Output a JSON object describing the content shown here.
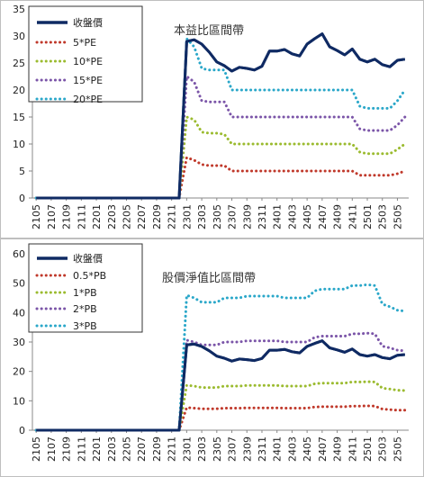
{
  "chart_data": [
    {
      "type": "line",
      "title": "本益比區間帶",
      "ylim": [
        0,
        35
      ],
      "yticks": [
        0,
        5,
        10,
        15,
        20,
        25,
        30,
        35
      ],
      "grid": "none",
      "legend_position": "top-left",
      "x": [
        "2105",
        "2106",
        "2107",
        "2108",
        "2109",
        "2110",
        "2111",
        "2112",
        "2201",
        "2202",
        "2203",
        "2204",
        "2205",
        "2206",
        "2207",
        "2208",
        "2209",
        "2210",
        "2211",
        "2212",
        "2301",
        "2302",
        "2303",
        "2304",
        "2305",
        "2306",
        "2307",
        "2308",
        "2309",
        "2310",
        "2311",
        "2312",
        "2401",
        "2402",
        "2403",
        "2404",
        "2405",
        "2406",
        "2407",
        "2408",
        "2409",
        "2410",
        "2411",
        "2412",
        "2501",
        "2502",
        "2503",
        "2504",
        "2505",
        "2506"
      ],
      "xtick_labels": [
        "2105",
        "2107",
        "2109",
        "2111",
        "2201",
        "2203",
        "2205",
        "2207",
        "2209",
        "2211",
        "2301",
        "2303",
        "2305",
        "2307",
        "2309",
        "2311",
        "2401",
        "2403",
        "2405",
        "2407",
        "2409",
        "2411",
        "2501",
        "2503",
        "2505"
      ],
      "series": [
        {
          "name": "收盤價",
          "color": "#0f2a63",
          "style": "solid",
          "values": [
            0,
            0,
            0,
            0,
            0,
            0,
            0,
            0,
            0,
            0,
            0,
            0,
            0,
            0,
            0,
            0,
            0,
            0,
            0,
            0,
            29,
            29.3,
            28.5,
            27,
            25.2,
            24.5,
            23.5,
            24.2,
            24,
            23.7,
            24.4,
            27.2,
            27.2,
            27.5,
            26.7,
            26.3,
            28.5,
            29.5,
            30.4,
            28,
            27.3,
            26.5,
            27.6,
            25.7,
            25.2,
            25.7,
            24.7,
            24.3,
            25.5,
            25.7
          ]
        },
        {
          "name": "5*PE",
          "color": "#c0392b",
          "style": "dotted",
          "values": [
            0,
            0,
            0,
            0,
            0,
            0,
            0,
            0,
            0,
            0,
            0,
            0,
            0,
            0,
            0,
            0,
            0,
            0,
            0,
            0,
            7.5,
            7,
            6.2,
            6,
            6,
            6,
            5,
            5,
            5,
            5,
            5,
            5,
            5,
            5,
            5,
            5,
            5,
            5,
            5,
            5,
            5,
            5,
            5,
            4.2,
            4.2,
            4.2,
            4.2,
            4.2,
            4.5,
            5
          ]
        },
        {
          "name": "10*PE",
          "color": "#9bbb2f",
          "style": "dotted",
          "values": [
            0,
            0,
            0,
            0,
            0,
            0,
            0,
            0,
            0,
            0,
            0,
            0,
            0,
            0,
            0,
            0,
            0,
            0,
            0,
            0,
            15,
            14.5,
            12.2,
            12,
            12,
            11.8,
            10,
            10,
            10,
            10,
            10,
            10,
            10,
            10,
            10,
            10,
            10,
            10,
            10,
            10,
            10,
            10,
            10,
            8.5,
            8.2,
            8.2,
            8.2,
            8.2,
            9,
            10
          ]
        },
        {
          "name": "15*PE",
          "color": "#7b55a8",
          "style": "dotted",
          "values": [
            0,
            0,
            0,
            0,
            0,
            0,
            0,
            0,
            0,
            0,
            0,
            0,
            0,
            0,
            0,
            0,
            0,
            0,
            0,
            0,
            22.5,
            21.5,
            18,
            17.8,
            17.8,
            17.8,
            15,
            15,
            15,
            15,
            15,
            15,
            15,
            15,
            15,
            15,
            15,
            15,
            15,
            15,
            15,
            15,
            15,
            12.8,
            12.5,
            12.5,
            12.5,
            12.5,
            13.5,
            15
          ]
        },
        {
          "name": "20*PE",
          "color": "#2aa7c9",
          "style": "dotted",
          "values": [
            0,
            0,
            0,
            0,
            0,
            0,
            0,
            0,
            0,
            0,
            0,
            0,
            0,
            0,
            0,
            0,
            0,
            0,
            0,
            0,
            29.5,
            28,
            24,
            23.7,
            23.7,
            23.7,
            20,
            20,
            20,
            20,
            20,
            20,
            20,
            20,
            20,
            20,
            20,
            20,
            20,
            20,
            20,
            20,
            20,
            17,
            16.6,
            16.6,
            16.6,
            16.6,
            18,
            20
          ]
        }
      ]
    },
    {
      "type": "line",
      "title": "股價淨值比區間帶",
      "ylim": [
        0,
        60
      ],
      "yticks": [
        0,
        10,
        20,
        30,
        40,
        50,
        60
      ],
      "grid": "none",
      "legend_position": "top-left",
      "x": [
        "2105",
        "2106",
        "2107",
        "2108",
        "2109",
        "2110",
        "2111",
        "2112",
        "2201",
        "2202",
        "2203",
        "2204",
        "2205",
        "2206",
        "2207",
        "2208",
        "2209",
        "2210",
        "2211",
        "2212",
        "2301",
        "2302",
        "2303",
        "2304",
        "2305",
        "2306",
        "2307",
        "2308",
        "2309",
        "2310",
        "2311",
        "2312",
        "2401",
        "2402",
        "2403",
        "2404",
        "2405",
        "2406",
        "2407",
        "2408",
        "2409",
        "2410",
        "2411",
        "2412",
        "2501",
        "2502",
        "2503",
        "2504",
        "2505",
        "2506"
      ],
      "xtick_labels": [
        "2105",
        "2107",
        "2109",
        "2111",
        "2201",
        "2203",
        "2205",
        "2207",
        "2209",
        "2211",
        "2301",
        "2303",
        "2305",
        "2307",
        "2309",
        "2311",
        "2401",
        "2403",
        "2405",
        "2407",
        "2409",
        "2411",
        "2501",
        "2503",
        "2505"
      ],
      "series": [
        {
          "name": "收盤價",
          "color": "#0f2a63",
          "style": "solid",
          "values": [
            0,
            0,
            0,
            0,
            0,
            0,
            0,
            0,
            0,
            0,
            0,
            0,
            0,
            0,
            0,
            0,
            0,
            0,
            0,
            0,
            29,
            29.3,
            28.5,
            27,
            25.2,
            24.5,
            23.5,
            24.2,
            24,
            23.7,
            24.4,
            27.2,
            27.2,
            27.5,
            26.7,
            26.3,
            28.5,
            29.5,
            30.4,
            28,
            27.3,
            26.5,
            27.6,
            25.7,
            25.2,
            25.7,
            24.7,
            24.3,
            25.5,
            25.7
          ]
        },
        {
          "name": "0.5*PB",
          "color": "#c0392b",
          "style": "dotted",
          "values": [
            0,
            0,
            0,
            0,
            0,
            0,
            0,
            0,
            0,
            0,
            0,
            0,
            0,
            0,
            0,
            0,
            0,
            0,
            0,
            0,
            7.7,
            7.5,
            7.3,
            7.3,
            7.3,
            7.5,
            7.5,
            7.5,
            7.6,
            7.6,
            7.6,
            7.6,
            7.6,
            7.5,
            7.5,
            7.5,
            7.5,
            7.9,
            8,
            8,
            8,
            8,
            8.2,
            8.2,
            8.3,
            8.2,
            7.2,
            7,
            6.8,
            6.8
          ]
        },
        {
          "name": "1*PB",
          "color": "#9bbb2f",
          "style": "dotted",
          "values": [
            0,
            0,
            0,
            0,
            0,
            0,
            0,
            0,
            0,
            0,
            0,
            0,
            0,
            0,
            0,
            0,
            0,
            0,
            0,
            0,
            15.3,
            15,
            14.5,
            14.5,
            14.5,
            15,
            15,
            15,
            15.2,
            15.2,
            15.2,
            15.2,
            15.2,
            15,
            15,
            15,
            15,
            15.8,
            16,
            16,
            16,
            16,
            16.4,
            16.4,
            16.5,
            16.4,
            14.3,
            14,
            13.6,
            13.5
          ]
        },
        {
          "name": "2*PB",
          "color": "#7b55a8",
          "style": "dotted",
          "values": [
            0,
            0,
            0,
            0,
            0,
            0,
            0,
            0,
            0,
            0,
            0,
            0,
            0,
            0,
            0,
            0,
            0,
            0,
            0,
            0,
            30.6,
            30,
            29,
            29,
            29,
            30,
            30,
            30,
            30.4,
            30.4,
            30.4,
            30.4,
            30.4,
            30,
            30,
            30,
            30,
            31.6,
            32,
            32,
            32,
            32,
            32.8,
            32.8,
            33,
            32.8,
            28.6,
            28,
            27.2,
            27
          ]
        },
        {
          "name": "3*PB",
          "color": "#2aa7c9",
          "style": "dotted",
          "values": [
            0,
            0,
            0,
            0,
            0,
            0,
            0,
            0,
            0,
            0,
            0,
            0,
            0,
            0,
            0,
            0,
            0,
            0,
            0,
            0,
            45.9,
            45,
            43.5,
            43.5,
            43.5,
            45,
            45,
            45,
            45.6,
            45.6,
            45.6,
            45.6,
            45.6,
            45,
            45,
            45,
            45,
            47.4,
            48,
            48,
            48,
            48,
            49.2,
            49.2,
            49.5,
            49.2,
            42.9,
            42,
            40.8,
            40.5
          ]
        }
      ]
    }
  ]
}
